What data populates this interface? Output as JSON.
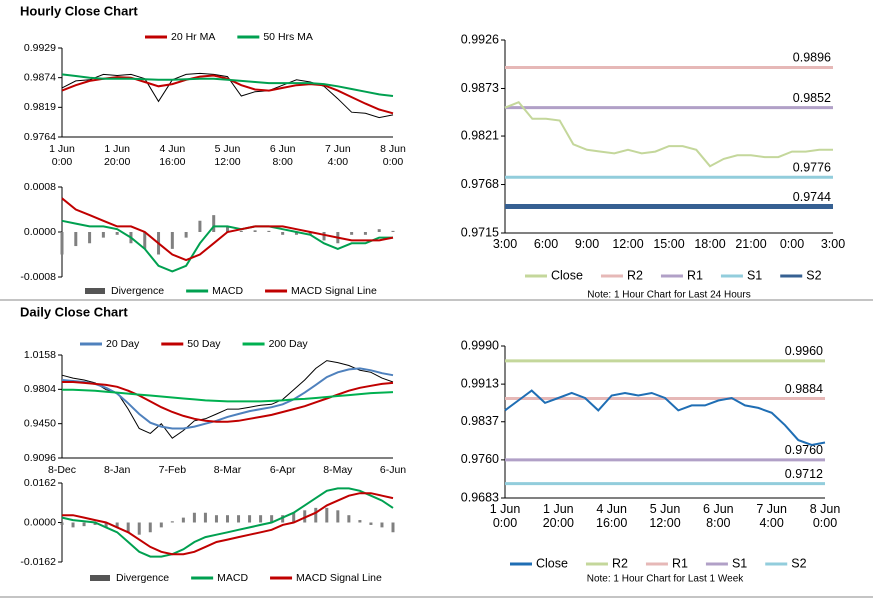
{
  "chart_data": [
    {
      "type": "line",
      "title": "Hourly Close Chart",
      "categories": [
        "1 Jun\n0:00",
        null,
        null,
        null,
        "1 Jun\n20:00",
        null,
        null,
        null,
        "4 Jun\n16:00",
        null,
        null,
        null,
        "5 Jun\n12:00",
        null,
        null,
        null,
        "6 Jun\n8:00",
        null,
        null,
        null,
        "7 Jun\n4:00",
        null,
        null,
        null,
        "8 Jun\n0:00"
      ],
      "ylim": [
        0.9764,
        0.9929
      ],
      "yticks": [
        0.9764,
        0.9819,
        0.9874,
        0.9929
      ],
      "series": [
        {
          "color": "#000000",
          "values": [
            0.9855,
            0.9868,
            0.987,
            0.988,
            0.9878,
            0.988,
            0.9872,
            0.983,
            0.987,
            0.988,
            0.9882,
            0.988,
            0.9876,
            0.984,
            0.9848,
            0.985,
            0.986,
            0.987,
            0.9866,
            0.9858,
            0.9835,
            0.981,
            0.9808,
            0.98,
            0.9805
          ]
        },
        {
          "name": "20 Hr MA",
          "color": "#c00000",
          "values": [
            0.985,
            0.986,
            0.9868,
            0.9872,
            0.9875,
            0.9874,
            0.9866,
            0.9858,
            0.9862,
            0.987,
            0.9876,
            0.9878,
            0.9872,
            0.986,
            0.9852,
            0.985,
            0.9855,
            0.986,
            0.9862,
            0.986,
            0.985,
            0.9838,
            0.9826,
            0.9815,
            0.9808
          ]
        },
        {
          "name": "50 Hrs MA",
          "color": "#00a050",
          "values": [
            0.988,
            0.9877,
            0.9874,
            0.9872,
            0.9872,
            0.9872,
            0.9871,
            0.987,
            0.987,
            0.9871,
            0.9872,
            0.9872,
            0.987,
            0.9868,
            0.9866,
            0.9864,
            0.9864,
            0.9864,
            0.9864,
            0.9862,
            0.9858,
            0.9853,
            0.9848,
            0.9843,
            0.984
          ]
        }
      ]
    },
    {
      "type": "line",
      "ylim": [
        -0.0008,
        0.0008
      ],
      "yticks": [
        -0.0008,
        {
          "value": 0,
          "label": "0.0000"
        },
        0.0008
      ],
      "series": [
        {
          "name": "Divergence",
          "type": "bar",
          "color": "#808080",
          "values": [
            -0.0004,
            -0.00025,
            -0.0002,
            -0.0001,
            -5e-05,
            -0.0002,
            -0.0003,
            -0.0004,
            -0.0003,
            -0.0001,
            0.0002,
            0.0003,
            0.0001,
            2e-05,
            3e-05,
            2e-05,
            -5e-05,
            -5e-05,
            -5e-05,
            -0.00015,
            -0.0002,
            -5e-05,
            -5e-05,
            5e-05,
            2e-05
          ]
        },
        {
          "name": "MACD",
          "color": "#00a050",
          "values": [
            0.0002,
            0.00015,
            0.0001,
            0.0001,
            5e-05,
            -0.0001,
            -0.0003,
            -0.0006,
            -0.0007,
            -0.0006,
            -0.0002,
            0.0001,
            0.0001,
            5e-05,
            0.0001,
            0.0001,
            5e-05,
            0,
            -5e-05,
            -0.0002,
            -0.0003,
            -0.0002,
            -0.0002,
            -0.0001,
            -0.0001
          ]
        },
        {
          "name": "MACD Signal Line",
          "color": "#c00000",
          "values": [
            0.0006,
            0.0004,
            0.0003,
            0.0002,
            0.0001,
            0.0001,
            0,
            -0.0002,
            -0.0004,
            -0.0005,
            -0.0004,
            -0.0002,
            0,
            5e-05,
            0.0001,
            0.0001,
            0.0001,
            5e-05,
            0,
            -5e-05,
            -0.0001,
            -0.00015,
            -0.00015,
            -0.00015,
            -0.0001
          ]
        }
      ]
    },
    {
      "type": "levels",
      "categories": [
        "3:00",
        null,
        null,
        "6:00",
        null,
        null,
        "9:00",
        null,
        null,
        "12:00",
        null,
        null,
        "15:00",
        null,
        null,
        "18:00",
        null,
        null,
        "21:00",
        null,
        null,
        "0:00",
        null,
        null,
        "3:00"
      ],
      "ylim": [
        0.9715,
        0.9926
      ],
      "yticks": [
        0.9715,
        0.9768,
        0.9821,
        0.9873,
        0.9926
      ],
      "series": [
        {
          "name": "Close",
          "color": "#c4d79b",
          "values": [
            0.9852,
            0.9858,
            0.984,
            0.984,
            0.9838,
            0.9812,
            0.9806,
            0.9804,
            0.9802,
            0.9806,
            0.9802,
            0.9804,
            0.981,
            0.981,
            0.9806,
            0.9788,
            0.9796,
            0.98,
            0.98,
            0.9798,
            0.9798,
            0.9804,
            0.9804,
            0.9806,
            0.9806
          ]
        }
      ],
      "levels": [
        {
          "name": "R2",
          "color": "#e6b8b7",
          "value": 0.9896
        },
        {
          "name": "R1",
          "color": "#b1a0c7",
          "value": 0.9852
        },
        {
          "name": "S1",
          "color": "#92cddc",
          "value": 0.9776
        },
        {
          "name": "S2",
          "color": "#366092",
          "value": 0.9744
        }
      ],
      "note": "Note: 1 Hour Chart for Last 24 Hours"
    },
    {
      "type": "line",
      "title": "Daily Close Chart",
      "categories": [
        "8-Dec",
        null,
        null,
        null,
        null,
        "8-Jan",
        null,
        null,
        null,
        null,
        "7-Feb",
        null,
        null,
        null,
        null,
        "8-Mar",
        null,
        null,
        null,
        null,
        "6-Apr",
        null,
        null,
        null,
        null,
        "8-May",
        null,
        null,
        null,
        null,
        "6-Jun"
      ],
      "ylim": [
        0.9096,
        1.0158
      ],
      "yticks": [
        0.9096,
        {
          "value": 0.945,
          "label": "0.9450"
        },
        0.9804,
        1.0158
      ],
      "series": [
        {
          "color": "#000000",
          "values": [
            0.995,
            0.992,
            0.99,
            0.987,
            0.98,
            0.977,
            0.96,
            0.94,
            0.935,
            0.945,
            0.93,
            0.938,
            0.948,
            0.95,
            0.955,
            0.96,
            0.96,
            0.962,
            0.964,
            0.965,
            0.97,
            0.98,
            0.99,
            1.002,
            1.01,
            1.008,
            1.005,
            1.0,
            0.998,
            0.992,
            0.988
          ]
        },
        {
          "name": "20 Day",
          "color": "#4f81bd",
          "values": [
            0.99,
            0.989,
            0.988,
            0.986,
            0.982,
            0.976,
            0.966,
            0.955,
            0.946,
            0.942,
            0.94,
            0.94,
            0.942,
            0.945,
            0.948,
            0.952,
            0.955,
            0.958,
            0.96,
            0.962,
            0.965,
            0.97,
            0.977,
            0.985,
            0.993,
            0.998,
            1.001,
            1.002,
            1.0,
            0.997,
            0.995
          ]
        },
        {
          "name": "50 Day",
          "color": "#c00000",
          "values": [
            0.988,
            0.988,
            0.987,
            0.986,
            0.985,
            0.983,
            0.979,
            0.974,
            0.968,
            0.962,
            0.957,
            0.953,
            0.95,
            0.948,
            0.947,
            0.947,
            0.948,
            0.95,
            0.952,
            0.954,
            0.957,
            0.96,
            0.963,
            0.967,
            0.971,
            0.975,
            0.979,
            0.982,
            0.984,
            0.986,
            0.987
          ]
        },
        {
          "name": "200 Day",
          "color": "#00b050",
          "values": [
            0.98,
            0.98,
            0.9795,
            0.979,
            0.978,
            0.977,
            0.976,
            0.975,
            0.974,
            0.973,
            0.972,
            0.971,
            0.97,
            0.969,
            0.9685,
            0.968,
            0.968,
            0.968,
            0.968,
            0.9685,
            0.969,
            0.97,
            0.9705,
            0.9715,
            0.9725,
            0.9735,
            0.9745,
            0.9755,
            0.9765,
            0.977,
            0.9775
          ]
        }
      ]
    },
    {
      "type": "line",
      "ylim": [
        -0.0162,
        0.0162
      ],
      "yticks": [
        -0.0162,
        {
          "value": 0,
          "label": "0.0000"
        },
        0.0162
      ],
      "series": [
        {
          "name": "Divergence",
          "type": "bar",
          "color": "#808080",
          "values": [
            -0.001,
            -0.002,
            -0.0015,
            -0.001,
            -0.002,
            -0.002,
            -0.004,
            -0.005,
            -0.004,
            -0.002,
            0.0005,
            0.002,
            0.004,
            0.004,
            0.003,
            0.003,
            0.003,
            0.003,
            0.003,
            0.003,
            0.003,
            0.004,
            0.005,
            0.006,
            0.006,
            0.005,
            0.003,
            0.001,
            -0.001,
            -0.002,
            -0.004
          ]
        },
        {
          "name": "MACD",
          "color": "#00a050",
          "values": [
            0.002,
            0.001,
            0.0005,
            0,
            -0.002,
            -0.004,
            -0.008,
            -0.012,
            -0.014,
            -0.014,
            -0.013,
            -0.011,
            -0.008,
            -0.006,
            -0.005,
            -0.004,
            -0.003,
            -0.002,
            -0.001,
            0,
            0.002,
            0.004,
            0.007,
            0.01,
            0.013,
            0.014,
            0.014,
            0.013,
            0.011,
            0.009,
            0.006
          ]
        },
        {
          "name": "MACD Signal Line",
          "color": "#c00000",
          "values": [
            0.003,
            0.003,
            0.002,
            0.001,
            0,
            -0.002,
            -0.004,
            -0.007,
            -0.01,
            -0.012,
            -0.013,
            -0.013,
            -0.012,
            -0.01,
            -0.008,
            -0.007,
            -0.006,
            -0.005,
            -0.004,
            -0.003,
            -0.001,
            0,
            0.002,
            0.004,
            0.007,
            0.009,
            0.011,
            0.012,
            0.012,
            0.011,
            0.01
          ]
        }
      ]
    },
    {
      "type": "levels",
      "categories": [
        "1 Jun\n0:00",
        null,
        null,
        null,
        "1 Jun\n20:00",
        null,
        null,
        null,
        "4 Jun\n16:00",
        null,
        null,
        null,
        "5 Jun\n12:00",
        null,
        null,
        null,
        "6 Jun\n8:00",
        null,
        null,
        null,
        "7 Jun\n4:00",
        null,
        null,
        null,
        "8 Jun\n0:00"
      ],
      "ylim": [
        0.9683,
        0.999
      ],
      "yticks": [
        0.9683,
        {
          "value": 0.976,
          "label": "0.9760"
        },
        0.9837,
        0.9913,
        {
          "value": 0.999,
          "label": "0.9990"
        }
      ],
      "series": [
        {
          "name": "Close",
          "color": "#1f6eb4",
          "values": [
            0.986,
            0.988,
            0.99,
            0.9875,
            0.9885,
            0.9895,
            0.9885,
            0.986,
            0.989,
            0.9895,
            0.989,
            0.9895,
            0.9885,
            0.986,
            0.987,
            0.987,
            0.988,
            0.9885,
            0.987,
            0.9865,
            0.9855,
            0.983,
            0.98,
            0.979,
            0.9795
          ]
        }
      ],
      "levels": [
        {
          "name": "R2",
          "color": "#c4d79b",
          "value": 0.996,
          "value_label": "0.9960"
        },
        {
          "name": "R1",
          "color": "#e6b8b7",
          "value": 0.9884
        },
        {
          "name": "S1",
          "color": "#b1a0c7",
          "value": 0.976,
          "value_label": "0.9760"
        },
        {
          "name": "S2",
          "color": "#92cddc",
          "value": 0.9712
        }
      ],
      "note": "Note: 1 Hour Chart for Last 1 Week"
    }
  ]
}
